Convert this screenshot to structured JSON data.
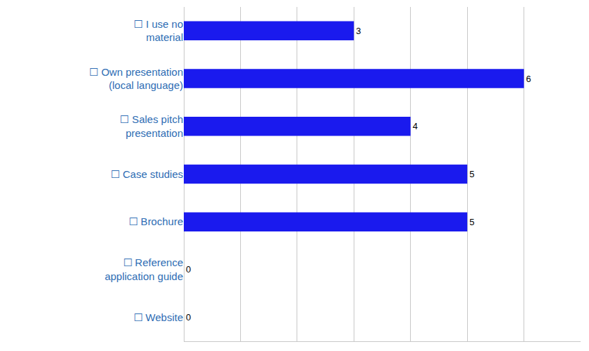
{
  "chart_data": {
    "type": "bar",
    "orientation": "horizontal",
    "categories": [
      "☐ I use no material",
      "☐ Own presentation (local language)",
      "☐ Sales pitch presentation",
      "☐ Case studies",
      "☐ Brochure",
      "☐ Reference application guide",
      "☐ Website"
    ],
    "values": [
      3,
      6,
      4,
      5,
      5,
      0,
      0
    ],
    "color": "#1a1aee",
    "xlim": [
      0,
      7
    ],
    "xticks": [
      0,
      1,
      2,
      3,
      4,
      5,
      6
    ],
    "grid": true,
    "data_labels": true,
    "tick_labels": "y"
  }
}
